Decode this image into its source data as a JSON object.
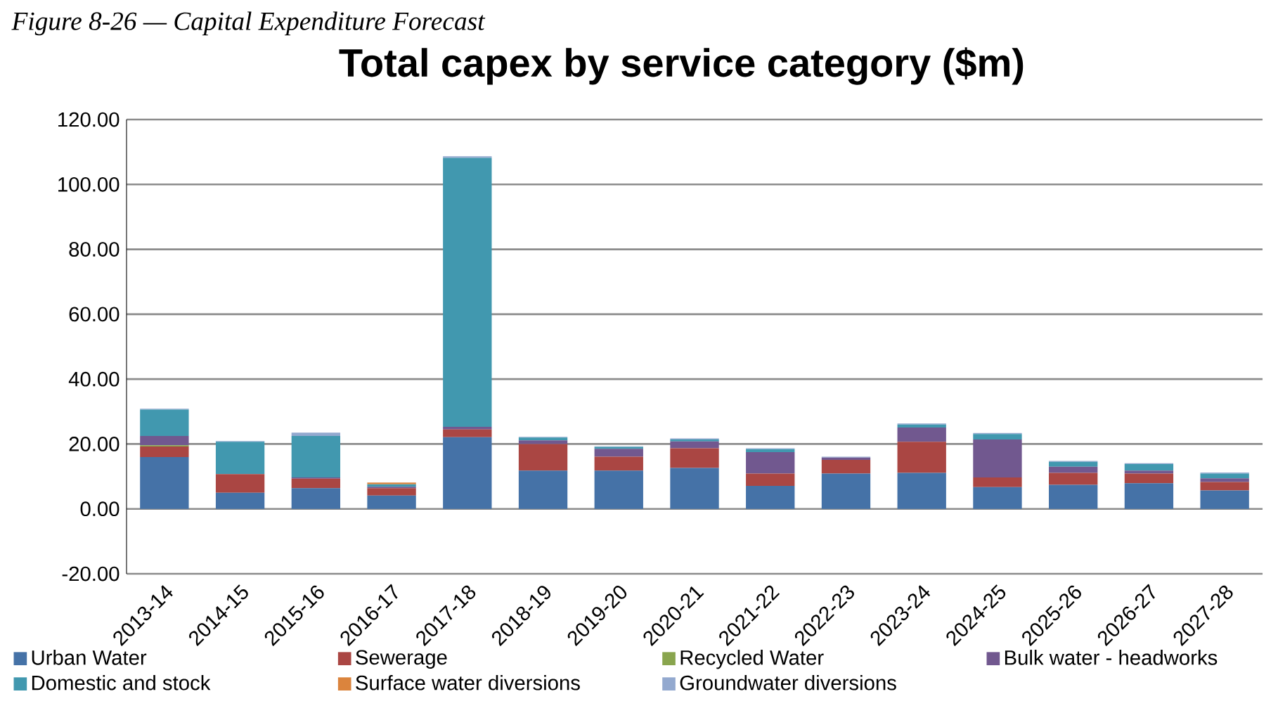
{
  "chart_data": {
    "type": "bar",
    "stacked": true,
    "title": "Total capex by service category ($m)",
    "annotations": [
      "Figure 8-26 — Capital Expenditure Forecast"
    ],
    "categories": [
      "2013-14",
      "2014-15",
      "2015-16",
      "2016-17",
      "2017-18",
      "2018-19",
      "2019-20",
      "2020-21",
      "2021-22",
      "2022-23",
      "2023-24",
      "2024-25",
      "2025-26",
      "2026-27",
      "2027-28"
    ],
    "series": [
      {
        "name": "Urban Water",
        "color": "#4572a7",
        "values": [
          16.0,
          5.0,
          6.4,
          4.1,
          22.1,
          11.8,
          11.8,
          12.6,
          7.1,
          10.9,
          11.1,
          6.7,
          7.4,
          7.9,
          5.7
        ]
      },
      {
        "name": "Sewerage",
        "color": "#aa4643",
        "values": [
          3.2,
          5.7,
          2.9,
          2.3,
          2.4,
          8.2,
          4.3,
          6.1,
          3.8,
          4.2,
          9.6,
          3.0,
          3.7,
          3.0,
          2.6
        ]
      },
      {
        "name": "Recycled Water",
        "color": "#89a54e",
        "values": [
          0.4,
          0,
          0,
          0,
          0,
          0,
          0,
          0,
          0,
          0,
          0,
          0,
          0,
          0,
          0
        ]
      },
      {
        "name": "Bulk water - headworks",
        "color": "#71588f",
        "values": [
          2.9,
          0,
          0.4,
          0.4,
          0.8,
          1.1,
          2.4,
          2.1,
          6.6,
          0.7,
          4.4,
          11.7,
          1.9,
          0.9,
          1.1
        ]
      },
      {
        "name": "Domestic and stock",
        "color": "#4198af",
        "values": [
          8.1,
          10.0,
          12.8,
          0.8,
          82.9,
          0.9,
          0.6,
          0.6,
          0.9,
          0,
          0.9,
          1.7,
          1.5,
          2.0,
          1.5
        ]
      },
      {
        "name": "Surface water diversions",
        "color": "#db843d",
        "values": [
          0,
          0,
          0,
          0.5,
          0,
          0,
          0,
          0,
          0,
          0,
          0,
          0,
          0,
          0,
          0
        ]
      },
      {
        "name": "Groundwater diversions",
        "color": "#93a9cf",
        "values": [
          0.3,
          0.2,
          1.0,
          null,
          0.5,
          0.2,
          0.2,
          0.3,
          0.3,
          0.3,
          0.3,
          0.3,
          0.3,
          0.3,
          0.3
        ]
      }
    ],
    "ylim": [
      -20,
      120
    ],
    "yticks": [
      {
        "value": -20,
        "label": "-20.00"
      },
      {
        "value": 0,
        "label": "0.00"
      },
      {
        "value": 20,
        "label": "20.00"
      },
      {
        "value": 40,
        "label": "40.00"
      },
      {
        "value": 60,
        "label": "60.00"
      },
      {
        "value": 80,
        "label": "80.00"
      },
      {
        "value": 100,
        "label": "100.00"
      },
      {
        "value": 120,
        "label": "120.00"
      }
    ],
    "grid": "y",
    "legend": "bottom"
  }
}
